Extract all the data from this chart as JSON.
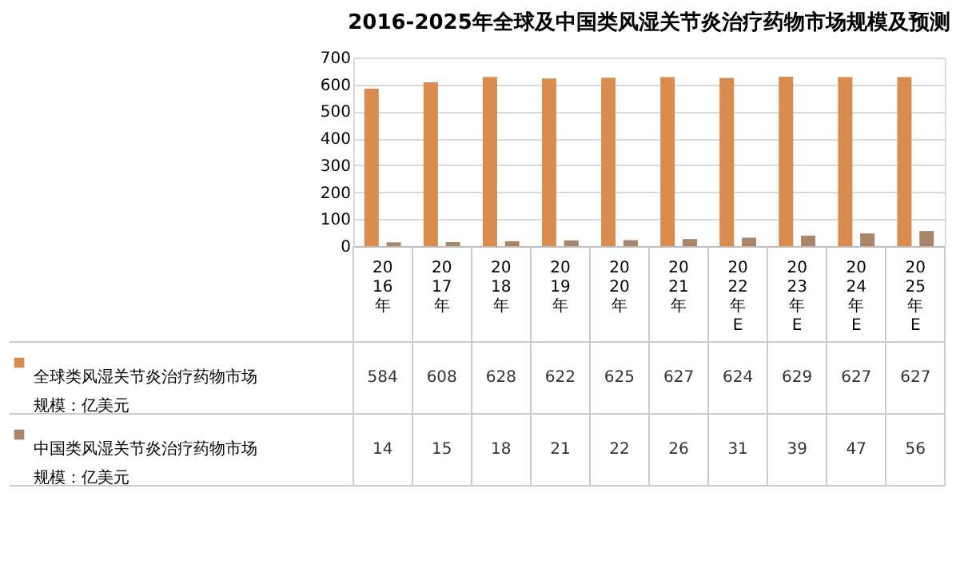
{
  "chart_data": {
    "type": "bar",
    "title": "2016-2025年全球及中国类风湿关节炎治疗药物市场规模及预测",
    "categories": [
      "2016年",
      "2017年",
      "2018年",
      "2019年",
      "2020年",
      "2021年",
      "2022年E",
      "2023年E",
      "2024年E",
      "2025年E"
    ],
    "series": [
      {
        "name": "全球类风湿关节炎治疗药物市场规模：亿美元",
        "color": "#d98c4e",
        "values": [
          584,
          608,
          628,
          622,
          625,
          627,
          624,
          629,
          627,
          627
        ]
      },
      {
        "name": "中国类风湿关节炎治疗药物市场规模：亿美元",
        "color": "#a9866a",
        "values": [
          14,
          15,
          18,
          21,
          22,
          26,
          31,
          39,
          47,
          56
        ]
      }
    ],
    "ylim": [
      0,
      700
    ],
    "yticks": [
      0,
      100,
      200,
      300,
      400,
      500,
      600,
      700
    ],
    "grid": "y",
    "data_labels": true,
    "legend": "bottom"
  }
}
